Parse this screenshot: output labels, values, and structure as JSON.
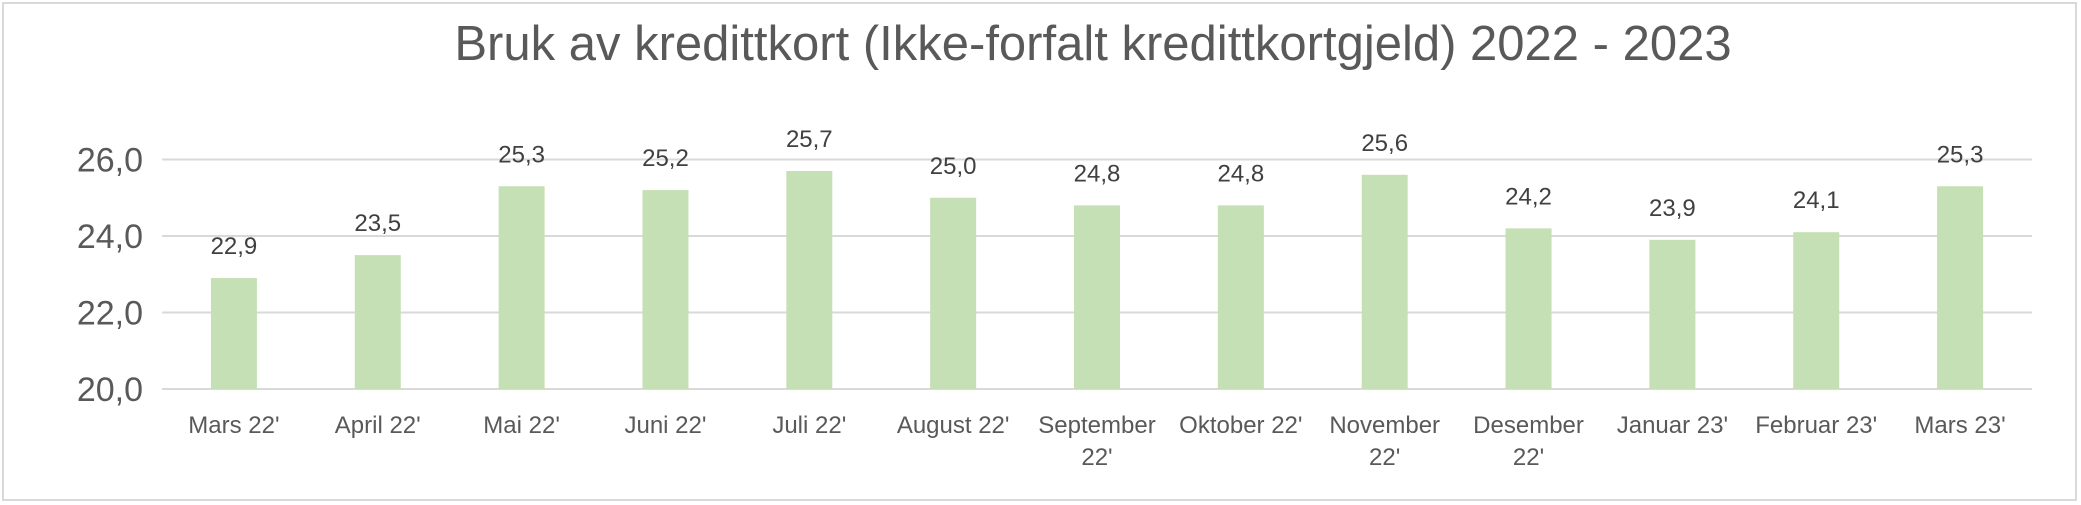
{
  "chart_data": {
    "type": "bar",
    "title": "Bruk av kredittkort (Ikke-forfalt kredittkortgjeld) 2022 - 2023",
    "categories": [
      [
        "Mars 22'"
      ],
      [
        "April 22'"
      ],
      [
        "Mai 22'"
      ],
      [
        "Juni 22'"
      ],
      [
        "Juli 22'"
      ],
      [
        "August 22'"
      ],
      [
        "September",
        "22'"
      ],
      [
        "Oktober 22'"
      ],
      [
        "November",
        "22'"
      ],
      [
        "Desember",
        "22'"
      ],
      [
        "Januar 23'"
      ],
      [
        "Februar 23'"
      ],
      [
        "Mars 23'"
      ]
    ],
    "values": [
      22.9,
      23.5,
      25.3,
      25.2,
      25.7,
      25.0,
      24.8,
      24.8,
      25.6,
      24.2,
      23.9,
      24.1,
      25.3
    ],
    "data_labels": [
      "22,9",
      "23,5",
      "25,3",
      "25,2",
      "25,7",
      "25,0",
      "24,8",
      "24,8",
      "25,6",
      "24,2",
      "23,9",
      "24,1",
      "25,3"
    ],
    "yticks": [
      {
        "value": 20,
        "label": "20,0"
      },
      {
        "value": 22,
        "label": "22,0"
      },
      {
        "value": 24,
        "label": "24,0"
      },
      {
        "value": 26,
        "label": "26,0"
      }
    ],
    "ylim": [
      20,
      26
    ],
    "xlabel": "",
    "ylabel": "",
    "grid": true,
    "legend": "none",
    "colors": {
      "bar": "#c5e0b4",
      "grid": "#d9d9d9",
      "text": "#595959",
      "label": "#404040"
    }
  }
}
